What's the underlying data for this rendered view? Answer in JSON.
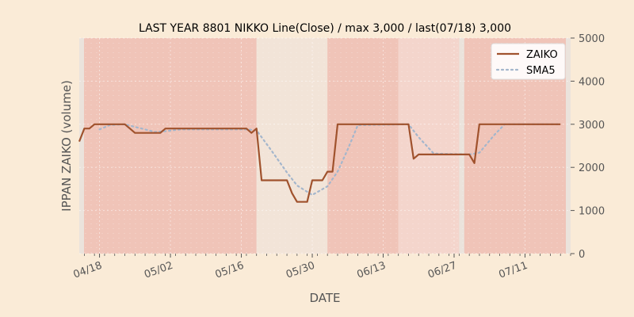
{
  "chart_data": {
    "type": "line",
    "title": "LAST YEAR 8801 NIKKO Line(Close) / max 3,000 / last(07/18) 3,000",
    "xlabel": "DATE",
    "ylabel": "IPPAN ZAIKO (volume)",
    "ylim": [
      0,
      5000
    ],
    "y_ticks": [
      "0",
      "1000",
      "2000",
      "3000",
      "4000",
      "5000"
    ],
    "y_tick_values": [
      0,
      1000,
      2000,
      3000,
      4000,
      5000
    ],
    "x_ticks": [
      "04/18",
      "05/02",
      "05/16",
      "05/30",
      "06/13",
      "06/27",
      "07/11"
    ],
    "x_tick_dates": [
      "2023-04-18",
      "2023-05-02",
      "2023-05-16",
      "2023-05-30",
      "2023-06-13",
      "2023-06-27",
      "2023-07-11"
    ],
    "x_range": [
      "2023-04-14",
      "2023-07-20"
    ],
    "legend_position": "upper-right",
    "grid": true,
    "colors": {
      "zaiko": "#a0522d",
      "sma5": "#a4b6cc",
      "background": "#faebd7",
      "band_strong": "#f0c4b8",
      "band_medium": "#f4d5cc",
      "band_light": "#f2e4d8"
    },
    "bands": [
      {
        "start": "2023-04-14",
        "end": "2023-05-19",
        "shade": "strong"
      },
      {
        "start": "2023-05-19",
        "end": "2023-06-02",
        "shade": "light"
      },
      {
        "start": "2023-06-02",
        "end": "2023-06-16",
        "shade": "strong"
      },
      {
        "start": "2023-06-16",
        "end": "2023-06-28",
        "shade": "medium"
      },
      {
        "start": "2023-06-29",
        "end": "2023-07-20",
        "shade": "strong"
      }
    ],
    "series": [
      {
        "name": "ZAIKO",
        "style": "solid",
        "points": [
          {
            "x": "2023-04-14",
            "y": 2600
          },
          {
            "x": "2023-04-15",
            "y": 2900
          },
          {
            "x": "2023-04-16",
            "y": 2900
          },
          {
            "x": "2023-04-17",
            "y": 3000
          },
          {
            "x": "2023-04-20",
            "y": 3000
          },
          {
            "x": "2023-04-23",
            "y": 3000
          },
          {
            "x": "2023-04-24",
            "y": 2900
          },
          {
            "x": "2023-04-25",
            "y": 2800
          },
          {
            "x": "2023-04-30",
            "y": 2800
          },
          {
            "x": "2023-05-01",
            "y": 2900
          },
          {
            "x": "2023-05-17",
            "y": 2900
          },
          {
            "x": "2023-05-18",
            "y": 2800
          },
          {
            "x": "2023-05-19",
            "y": 2900
          },
          {
            "x": "2023-05-20",
            "y": 1700
          },
          {
            "x": "2023-05-25",
            "y": 1700
          },
          {
            "x": "2023-05-26",
            "y": 1400
          },
          {
            "x": "2023-05-27",
            "y": 1200
          },
          {
            "x": "2023-05-29",
            "y": 1200
          },
          {
            "x": "2023-05-30",
            "y": 1700
          },
          {
            "x": "2023-06-01",
            "y": 1700
          },
          {
            "x": "2023-06-02",
            "y": 1900
          },
          {
            "x": "2023-06-03",
            "y": 1900
          },
          {
            "x": "2023-06-04",
            "y": 3000
          },
          {
            "x": "2023-06-18",
            "y": 3000
          },
          {
            "x": "2023-06-19",
            "y": 2200
          },
          {
            "x": "2023-06-20",
            "y": 2300
          },
          {
            "x": "2023-06-30",
            "y": 2300
          },
          {
            "x": "2023-07-01",
            "y": 2100
          },
          {
            "x": "2023-07-02",
            "y": 3000
          },
          {
            "x": "2023-07-18",
            "y": 3000
          }
        ]
      },
      {
        "name": "SMA5",
        "style": "dotted",
        "points": [
          {
            "x": "2023-04-18",
            "y": 2880
          },
          {
            "x": "2023-04-20",
            "y": 2980
          },
          {
            "x": "2023-04-23",
            "y": 3000
          },
          {
            "x": "2023-04-25",
            "y": 2940
          },
          {
            "x": "2023-04-27",
            "y": 2880
          },
          {
            "x": "2023-04-29",
            "y": 2820
          },
          {
            "x": "2023-05-01",
            "y": 2840
          },
          {
            "x": "2023-05-04",
            "y": 2880
          },
          {
            "x": "2023-05-17",
            "y": 2880
          },
          {
            "x": "2023-05-19",
            "y": 2860
          },
          {
            "x": "2023-05-22",
            "y": 2380
          },
          {
            "x": "2023-05-25",
            "y": 1880
          },
          {
            "x": "2023-05-27",
            "y": 1580
          },
          {
            "x": "2023-05-30",
            "y": 1360
          },
          {
            "x": "2023-06-02",
            "y": 1560
          },
          {
            "x": "2023-06-04",
            "y": 1900
          },
          {
            "x": "2023-06-06",
            "y": 2420
          },
          {
            "x": "2023-06-08",
            "y": 2980
          },
          {
            "x": "2023-06-18",
            "y": 3000
          },
          {
            "x": "2023-06-20",
            "y": 2700
          },
          {
            "x": "2023-06-23",
            "y": 2320
          },
          {
            "x": "2023-06-30",
            "y": 2300
          },
          {
            "x": "2023-07-02",
            "y": 2340
          },
          {
            "x": "2023-07-05",
            "y": 2760
          },
          {
            "x": "2023-07-07",
            "y": 3000
          },
          {
            "x": "2023-07-18",
            "y": 3000
          }
        ]
      }
    ]
  }
}
